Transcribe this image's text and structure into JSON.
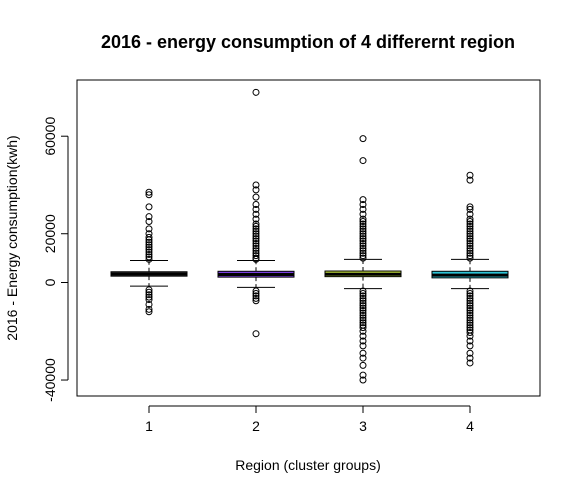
{
  "chart_data": {
    "type": "box",
    "title": "2016 - energy consumption of 4 differernt region",
    "xlabel": "Region (cluster groups)",
    "ylabel": "2016 - Energy consumption(kwh)",
    "categories": [
      "1",
      "2",
      "3",
      "4"
    ],
    "y_ticks": [
      -40000,
      0,
      20000,
      60000
    ],
    "y_tick_labels": [
      "-40000",
      "0",
      "20000",
      "60000"
    ],
    "ylim": [
      -44500,
      81000
    ],
    "grid": false,
    "legend": "none",
    "boxes": [
      {
        "category": "1",
        "color": "#6b6b6b",
        "whisker_low": -1500,
        "q1": 2600,
        "median": 3500,
        "q3": 4400,
        "whisker_high": 9000,
        "outliers_high": [
          9500,
          10500,
          11500,
          12500,
          13500,
          14500,
          15500,
          16500,
          17500,
          18500,
          20000,
          22000,
          25000,
          27000,
          31000,
          36000,
          37000
        ],
        "outliers_low": [
          -3000,
          -4000,
          -5000,
          -6000,
          -7000,
          -9000,
          -11000,
          -12000
        ]
      },
      {
        "category": "2",
        "color": "#7b3fe0",
        "whisker_low": -2000,
        "q1": 2200,
        "median": 3300,
        "q3": 4600,
        "whisker_high": 9000,
        "outliers_high": [
          9500,
          10000,
          11000,
          12000,
          13000,
          14000,
          15000,
          16000,
          17000,
          18000,
          19000,
          20000,
          21000,
          22000,
          23000,
          24000,
          26000,
          28000,
          30000,
          32000,
          35000,
          38000,
          40000,
          78000
        ],
        "outliers_low": [
          -3500,
          -4500,
          -5500,
          -6500,
          -7500,
          -21000
        ]
      },
      {
        "category": "3",
        "color": "#c3de3e",
        "whisker_low": -2500,
        "q1": 2400,
        "median": 3400,
        "q3": 4700,
        "whisker_high": 9500,
        "outliers_high": [
          10000,
          11000,
          12000,
          13000,
          14000,
          15000,
          16000,
          17000,
          18000,
          19000,
          20000,
          21000,
          22000,
          23000,
          24000,
          25000,
          26000,
          28000,
          30000,
          32000,
          34000,
          50000,
          59000
        ],
        "outliers_low": [
          -3500,
          -4500,
          -5500,
          -6500,
          -7500,
          -8500,
          -9500,
          -10500,
          -11500,
          -12500,
          -13500,
          -14500,
          -15500,
          -16500,
          -17500,
          -18500,
          -20000,
          -22000,
          -24000,
          -26000,
          -29000,
          -31000,
          -34000,
          -38000,
          -40000
        ]
      },
      {
        "category": "4",
        "color": "#2ec4d6",
        "whisker_low": -2500,
        "q1": 1900,
        "median": 3000,
        "q3": 4600,
        "whisker_high": 9500,
        "outliers_high": [
          10000,
          11000,
          12000,
          13000,
          14000,
          15000,
          16000,
          17000,
          18000,
          19000,
          20000,
          21000,
          22000,
          23000,
          24000,
          25000,
          26000,
          28000,
          30000,
          31000,
          42000,
          44000
        ],
        "outliers_low": [
          -3500,
          -4500,
          -5500,
          -6500,
          -7500,
          -8500,
          -9500,
          -10500,
          -11500,
          -12500,
          -13500,
          -14500,
          -15500,
          -16500,
          -17500,
          -18500,
          -19500,
          -20500,
          -22000,
          -24000,
          -26000,
          -29000,
          -31000,
          -33000
        ]
      }
    ]
  }
}
